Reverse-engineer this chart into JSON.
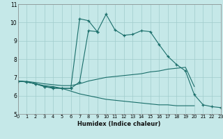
{
  "xlabel": "Humidex (Indice chaleur)",
  "bg_color": "#c5e8e8",
  "grid_color": "#a0cccc",
  "line_color": "#1a6e6a",
  "xlim": [
    0,
    23
  ],
  "ylim": [
    5,
    11
  ],
  "xticks": [
    0,
    1,
    2,
    3,
    4,
    5,
    6,
    7,
    8,
    9,
    10,
    11,
    12,
    13,
    14,
    15,
    16,
    17,
    18,
    19,
    20,
    21,
    22,
    23
  ],
  "yticks": [
    5,
    6,
    7,
    8,
    9,
    10,
    11
  ],
  "lines": [
    {
      "x": [
        0,
        1,
        2,
        3,
        4,
        5,
        6,
        7,
        8,
        9,
        10,
        11,
        12,
        13,
        14,
        15,
        16,
        17,
        18,
        19,
        20,
        21,
        22,
        23
      ],
      "y": [
        6.8,
        6.75,
        6.65,
        6.5,
        6.4,
        6.4,
        6.4,
        6.75,
        9.55,
        9.5,
        10.45,
        9.6,
        9.3,
        9.35,
        9.55,
        9.5,
        8.8,
        8.15,
        7.7,
        7.35,
        6.05,
        5.5,
        5.4,
        5.35
      ],
      "marker": true
    },
    {
      "x": [
        0,
        1,
        2,
        3,
        4,
        5,
        6,
        7,
        8,
        9
      ],
      "y": [
        6.8,
        6.75,
        6.65,
        6.5,
        6.45,
        6.4,
        6.4,
        10.2,
        10.1,
        9.5
      ],
      "marker": true
    },
    {
      "x": [
        0,
        1,
        2,
        3,
        4,
        5,
        6,
        7,
        8,
        9,
        10,
        11,
        12,
        13,
        14,
        15,
        16,
        17,
        18,
        19,
        20
      ],
      "y": [
        6.8,
        6.78,
        6.72,
        6.65,
        6.6,
        6.55,
        6.55,
        6.65,
        6.8,
        6.9,
        7.0,
        7.05,
        7.1,
        7.15,
        7.2,
        7.3,
        7.35,
        7.45,
        7.5,
        7.55,
        6.5
      ],
      "marker": false
    },
    {
      "x": [
        0,
        1,
        2,
        3,
        4,
        5,
        6,
        7,
        8,
        9,
        10,
        11,
        12,
        13,
        14,
        15,
        16,
        17,
        18,
        19,
        20
      ],
      "y": [
        6.8,
        6.75,
        6.65,
        6.55,
        6.5,
        6.4,
        6.25,
        6.1,
        6.0,
        5.9,
        5.8,
        5.75,
        5.7,
        5.65,
        5.6,
        5.55,
        5.5,
        5.5,
        5.45,
        5.45,
        5.45
      ],
      "marker": false
    }
  ]
}
